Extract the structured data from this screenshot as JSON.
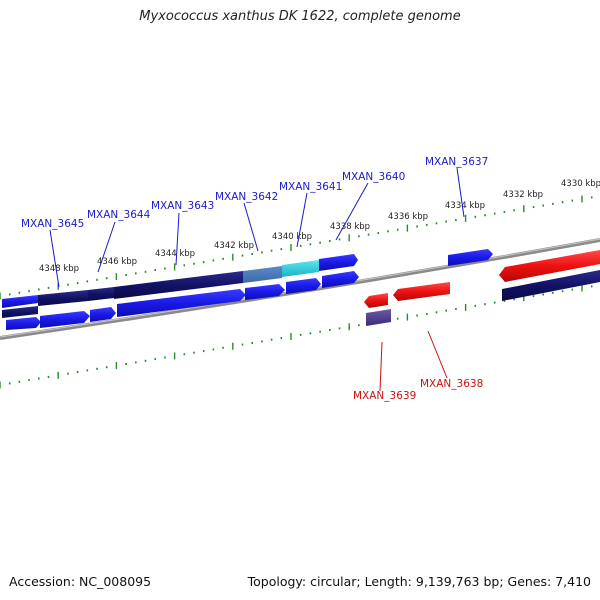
{
  "title": "Myxococcus xanthus DK 1622, complete genome",
  "footer": {
    "accession": "Accession: NC_008095",
    "summary": "Topology: circular; Length: 9,139,763 bp; Genes: 7,410"
  },
  "colors": {
    "forward_gene": "#1a1aee",
    "forward_gene_dark": "#101070",
    "reverse_gene": "#ee1111",
    "highlight_gene": "#22c4d4",
    "label_forward": "#1a1acc",
    "label_reverse": "#cc1111",
    "tick": "#2a8a2a",
    "backbone": "#8a8a8a"
  },
  "scale_ticks": [
    "4348 kbp",
    "4346 kbp",
    "4344 kbp",
    "4342 kbp",
    "4340 kbp",
    "4338 kbp",
    "4336 kbp",
    "4334 kbp",
    "4332 kbp",
    "4330 kbp"
  ],
  "gene_labels_forward": [
    "MXAN_3645",
    "MXAN_3644",
    "MXAN_3643",
    "MXAN_3642",
    "MXAN_3641",
    "MXAN_3640",
    "MXAN_3637"
  ],
  "gene_labels_reverse": [
    "MXAN_3639",
    "MXAN_3638"
  ]
}
